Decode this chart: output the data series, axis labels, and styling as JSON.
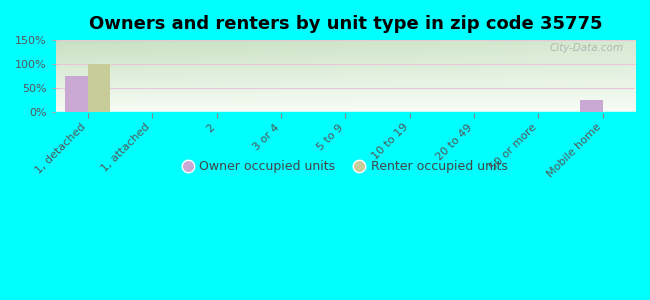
{
  "title": "Owners and renters by unit type in zip code 35775",
  "categories": [
    "1, detached",
    "1, attached",
    "2",
    "3 or 4",
    "5 to 9",
    "10 to 19",
    "20 to 49",
    "50 or more",
    "Mobile home"
  ],
  "owner_values": [
    75,
    0,
    0,
    0,
    0,
    0,
    0,
    0,
    25
  ],
  "renter_values": [
    100,
    0,
    0,
    0,
    0,
    0,
    0,
    0,
    0
  ],
  "owner_color": "#c9a8d4",
  "renter_color": "#c8cc99",
  "ylim": [
    0,
    150
  ],
  "yticks": [
    0,
    50,
    100,
    150
  ],
  "ytick_labels": [
    "0%",
    "50%",
    "100%",
    "150%"
  ],
  "background_color": "#00ffff",
  "bar_width": 0.35,
  "watermark": "City-Data.com",
  "legend_owner": "Owner occupied units",
  "legend_renter": "Renter occupied units",
  "title_fontsize": 13,
  "tick_fontsize": 8,
  "legend_fontsize": 9,
  "grid_color": "#e8c8d8",
  "plot_left_color": "#c8ddc0",
  "plot_right_color": "#f0f5ee"
}
